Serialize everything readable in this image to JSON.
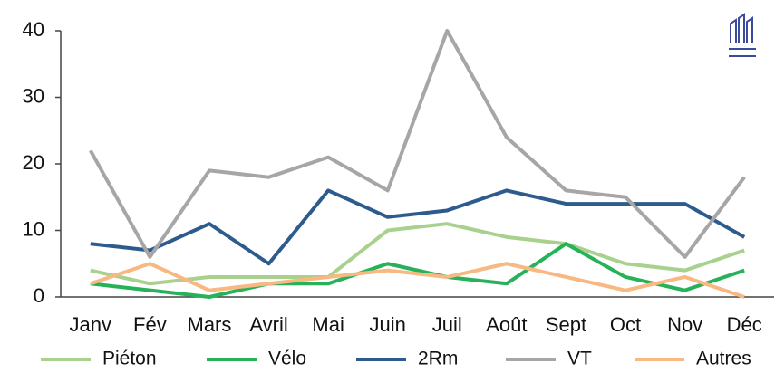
{
  "chart_data": {
    "type": "line",
    "categories": [
      "Janv",
      "Fév",
      "Mars",
      "Avril",
      "Mai",
      "Juin",
      "Juil",
      "Août",
      "Sept",
      "Oct",
      "Nov",
      "Déc"
    ],
    "series": [
      {
        "name": "Piéton",
        "color": "#a9d18e",
        "values": [
          4,
          2,
          3,
          3,
          3,
          10,
          11,
          9,
          8,
          5,
          4,
          7
        ]
      },
      {
        "name": "Vélo",
        "color": "#27b259",
        "values": [
          2,
          1,
          0,
          2,
          2,
          5,
          3,
          2,
          8,
          3,
          1,
          4
        ]
      },
      {
        "name": "2Rm",
        "color": "#2e5b8e",
        "values": [
          8,
          7,
          11,
          5,
          16,
          12,
          13,
          16,
          14,
          14,
          14,
          9
        ]
      },
      {
        "name": "VT",
        "color": "#a6a6a6",
        "values": [
          22,
          6,
          19,
          18,
          21,
          16,
          40,
          24,
          16,
          15,
          6,
          18
        ]
      },
      {
        "name": "Autres",
        "color": "#f7b882",
        "values": [
          2,
          5,
          1,
          2,
          3,
          4,
          3,
          5,
          3,
          1,
          3,
          0
        ]
      }
    ],
    "ylim": [
      0,
      40
    ],
    "yticks": [
      0,
      10,
      20,
      30,
      40
    ],
    "grid": false,
    "legend": "bottom"
  }
}
